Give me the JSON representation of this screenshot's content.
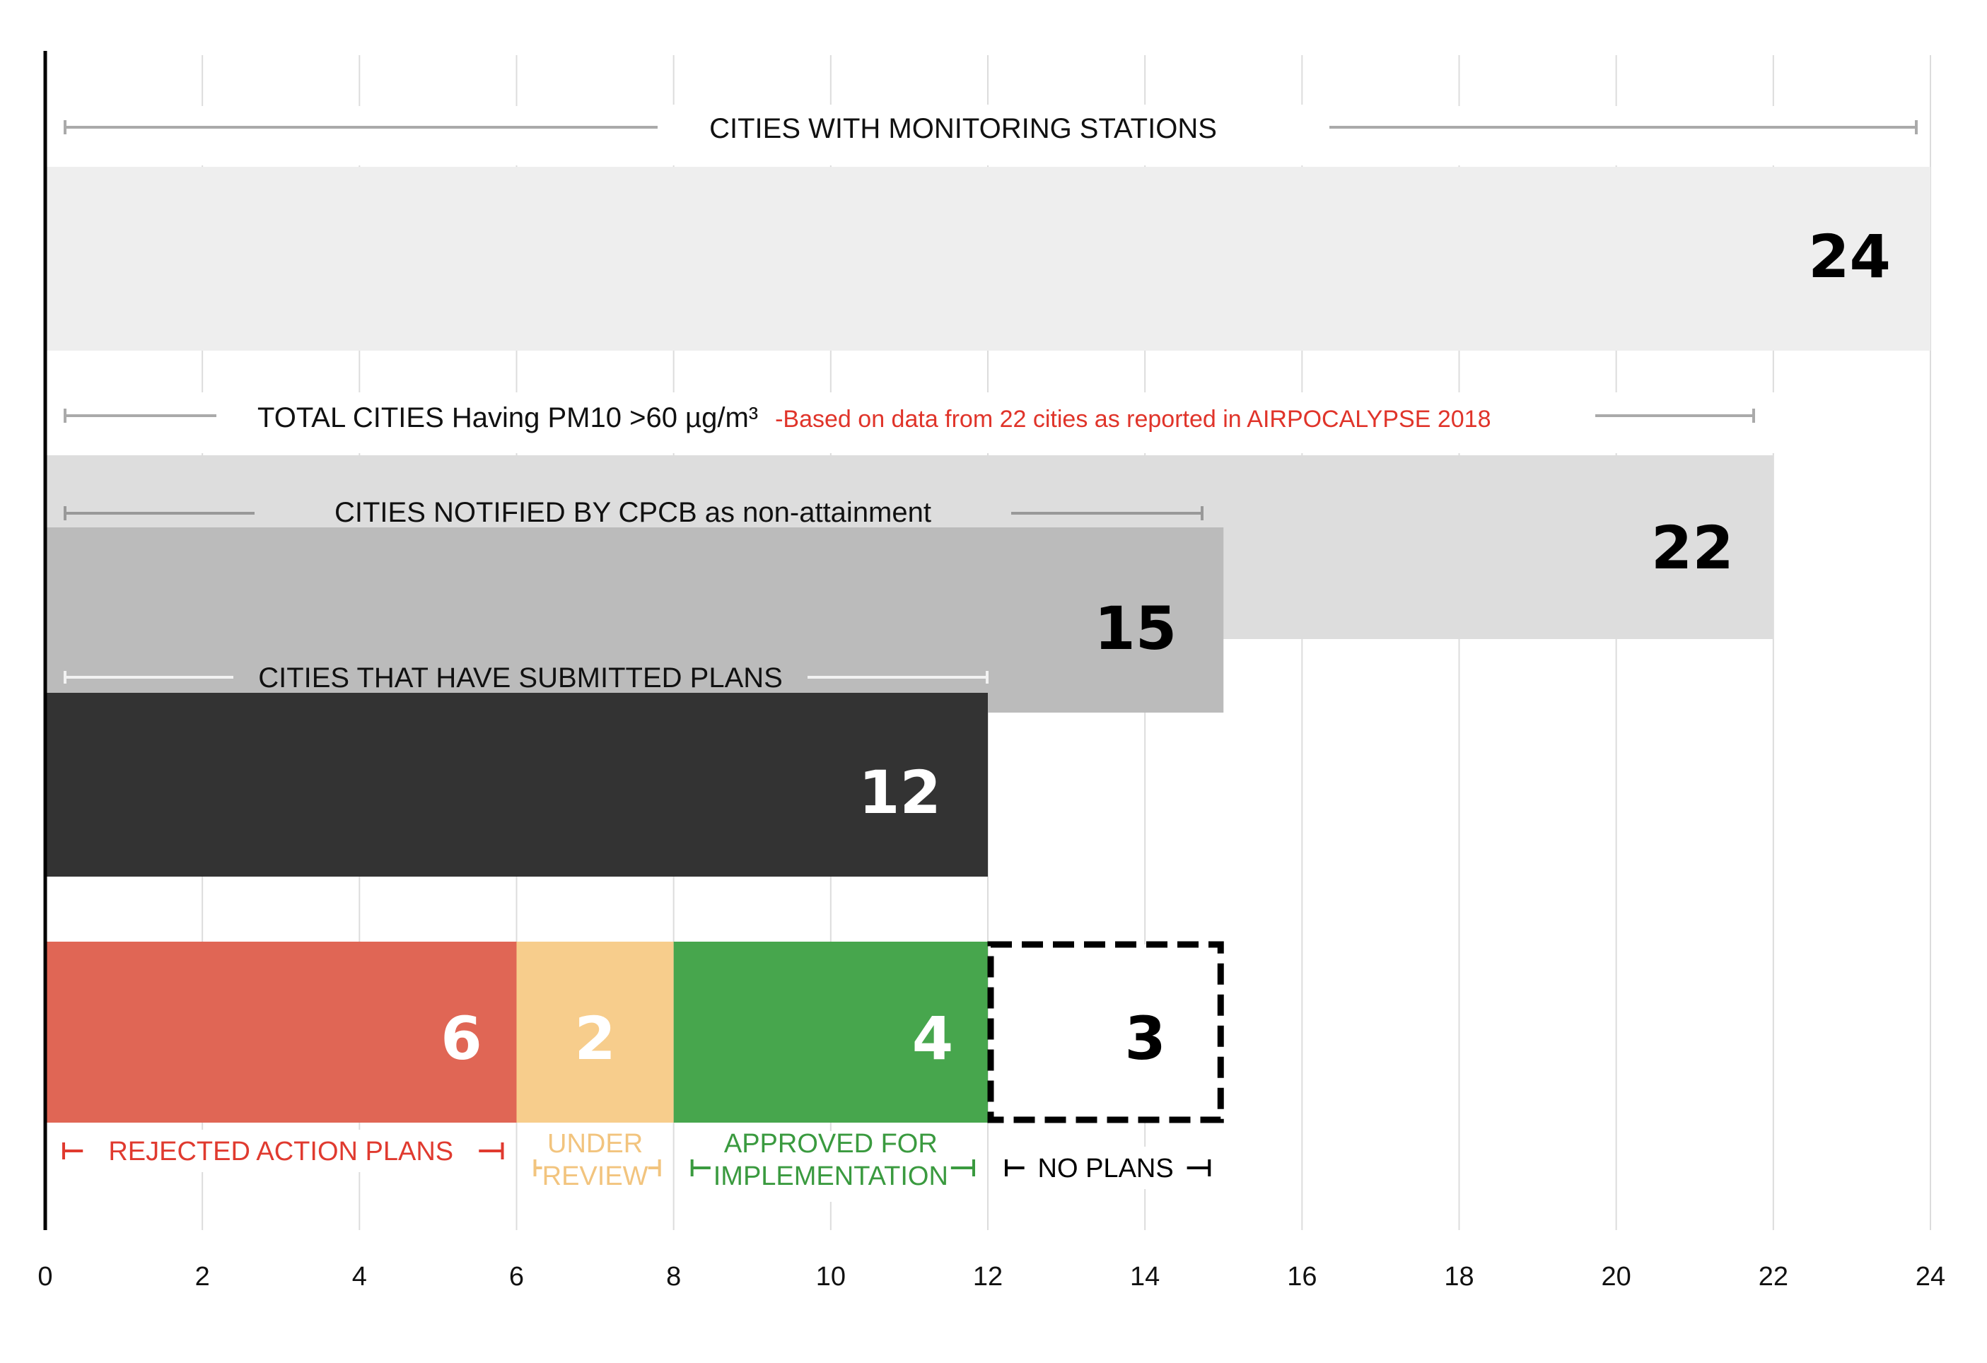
{
  "chart_data": {
    "type": "bar",
    "orientation": "horizontal",
    "xlim": [
      0,
      24
    ],
    "x_ticks": [
      "0",
      "2",
      "4",
      "6",
      "8",
      "10",
      "12",
      "14",
      "16",
      "18",
      "20",
      "22",
      "24"
    ],
    "grid": "vertical",
    "series": [
      {
        "label": "CITIES WITH MONITORING STATIONS",
        "value": 24,
        "value_label": "24",
        "color": "#eeeeee",
        "value_color": "#000000"
      },
      {
        "label": "TOTAL CITIES Having PM10 >60 µg/m³",
        "note": "-Based on data from 22 cities as reported in AIRPOCALYPSE 2018",
        "value": 22,
        "value_label": "22",
        "color": "#dddddd",
        "value_color": "#000000"
      },
      {
        "label": "CITIES NOTIFIED BY CPCB as non-attainment",
        "value": 15,
        "value_label": "15",
        "color": "#bbbbbb",
        "value_color": "#000000"
      },
      {
        "label": "CITIES THAT HAVE SUBMITTED PLANS",
        "value": 12,
        "value_label": "12",
        "color": "#333333",
        "value_color": "#ffffff"
      }
    ],
    "breakdown": [
      {
        "label": "REJECTED ACTION PLANS",
        "value": 6,
        "value_label": "6",
        "color": "#e06655",
        "label_color": "#e03a2f"
      },
      {
        "label": "UNDER REVIEW",
        "value": 2,
        "value_label": "2",
        "color": "#f7cd8c",
        "label_color": "#f2c47e"
      },
      {
        "label": "APPROVED FOR IMPLEMENTATION",
        "value": 4,
        "value_label": "4",
        "color": "#47a64d",
        "label_color": "#3a9a3f"
      },
      {
        "label": "NO PLANS",
        "value": 3,
        "value_label": "3",
        "color": "#ffffff",
        "label_color": "#000000",
        "dashed": true
      }
    ],
    "note_color": "#e0342a"
  }
}
